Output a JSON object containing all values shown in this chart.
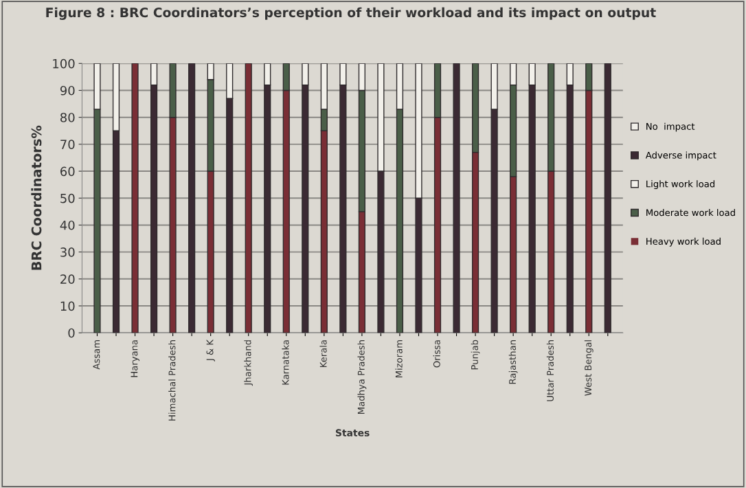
{
  "chart_data": {
    "type": "bar",
    "title": "Figure 8 : BRC Coordinators’s perception of their workload and its impact on output",
    "xlabel": "States",
    "ylabel": "BRC Coordinators%",
    "categories": [
      "Assam",
      null,
      "Haryana",
      null,
      "Himachal Pradesh",
      null,
      "J & K",
      null,
      "Jharkhand",
      null,
      "Karnataka",
      null,
      "Kerala",
      null,
      "Madhya Pradesh",
      null,
      "Mizoram",
      null,
      "Orissa",
      null,
      "Punjab",
      null,
      "Rajasthan",
      null,
      "Uttar Pradesh",
      null,
      "West Bengal",
      null
    ],
    "stacked": true,
    "series": [
      {
        "name": "Heavy work load",
        "color": "#7a2e35",
        "values": [
          0,
          null,
          100,
          null,
          80,
          null,
          60,
          null,
          100,
          null,
          90,
          null,
          75,
          null,
          45,
          null,
          0,
          null,
          80,
          null,
          67,
          null,
          58,
          null,
          60,
          null,
          90,
          null
        ]
      },
      {
        "name": "Moderate work load",
        "color": "#4a5e48",
        "values": [
          83,
          null,
          0,
          null,
          20,
          null,
          34,
          null,
          0,
          null,
          10,
          null,
          8,
          null,
          45,
          null,
          83,
          null,
          20,
          null,
          33,
          null,
          34,
          null,
          40,
          null,
          10,
          null
        ]
      },
      {
        "name": "Light work load",
        "color": "#f2f0ea",
        "values": [
          17,
          null,
          0,
          null,
          0,
          null,
          6,
          null,
          0,
          null,
          0,
          null,
          17,
          null,
          10,
          null,
          17,
          null,
          0,
          null,
          0,
          null,
          8,
          null,
          0,
          null,
          0,
          null
        ]
      },
      {
        "name": "Adverse impact",
        "color": "#3b2a33",
        "values": [
          null,
          75,
          null,
          92,
          null,
          100,
          null,
          87,
          null,
          92,
          null,
          92,
          null,
          92,
          null,
          60,
          null,
          50,
          null,
          100,
          null,
          83,
          null,
          92,
          null,
          92,
          null,
          100
        ]
      },
      {
        "name": "No  impact",
        "color": "#f2f0ea",
        "values": [
          null,
          25,
          null,
          8,
          null,
          0,
          null,
          13,
          null,
          8,
          null,
          8,
          null,
          8,
          null,
          40,
          null,
          50,
          null,
          0,
          null,
          17,
          null,
          8,
          null,
          8,
          null,
          0
        ]
      }
    ],
    "ylim": [
      0,
      100
    ],
    "yticks": [
      0,
      10,
      20,
      30,
      40,
      50,
      60,
      70,
      80,
      90,
      100
    ],
    "grid": "y",
    "legend": "right"
  }
}
